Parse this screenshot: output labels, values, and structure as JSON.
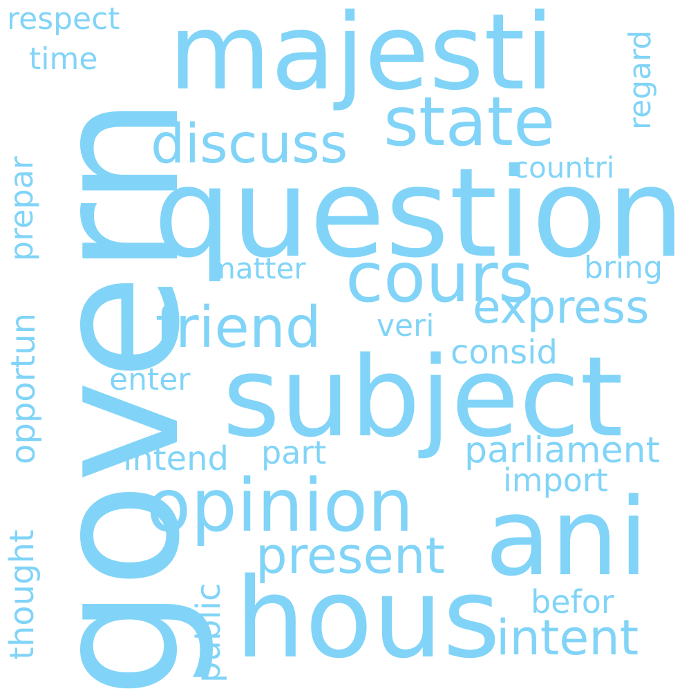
{
  "colors": {
    "background": "#ffffff",
    "word": "#81d4f7"
  },
  "words": {
    "govern": "govern",
    "question": "question",
    "subject": "subject",
    "majesti": "majesti",
    "hous": "hous",
    "ani": "ani",
    "opinion": "opinion",
    "cours": "cours",
    "state": "state",
    "friend": "friend",
    "discuss": "discuss",
    "express": "express",
    "present": "present",
    "intent": "intent",
    "parliament": "parliament",
    "countri": "countri",
    "consid": "consid",
    "import": "import",
    "matter": "matter",
    "bring": "bring",
    "respect": "respect",
    "time": "time",
    "veri": "veri",
    "enter": "enter",
    "intend": "intend",
    "part": "part",
    "befor": "befor",
    "regard": "regard",
    "prepar": "prepar",
    "opportun": "opportun",
    "thought": "thought",
    "public": "public"
  }
}
